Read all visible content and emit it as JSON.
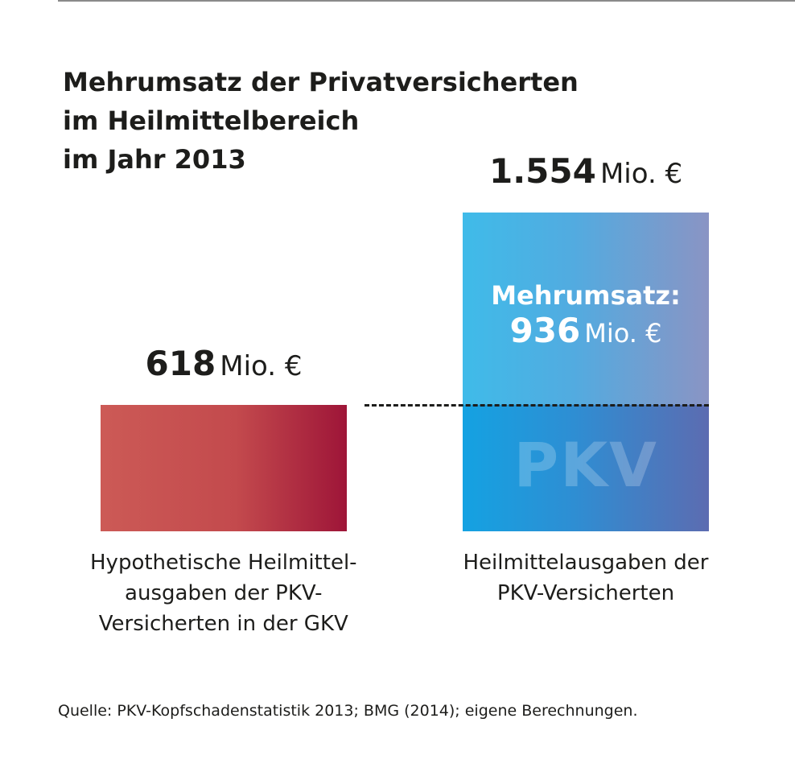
{
  "chart_data": {
    "type": "bar",
    "title_lines": [
      "Mehrumsatz der Privatversicherten",
      "im Heilmittelbereich",
      "im Jahr 2013"
    ],
    "categories": [
      [
        "Hypothetische Heilmittel-",
        "ausgaben der PKV-",
        "Versicherten in der GKV"
      ],
      [
        "Heilmittelausgaben der",
        "PKV-Versicherten"
      ]
    ],
    "values": [
      618,
      1554
    ],
    "value_labels": [
      {
        "number": "618",
        "unit": "Mio. €"
      },
      {
        "number": "1.554",
        "unit": "Mio. €"
      }
    ],
    "difference": {
      "label": "Mehrumsatz:",
      "number": "936",
      "unit": "Mio. €",
      "value": 936
    },
    "watermark": "PKV",
    "source": "Quelle: PKV-Kopfschadenstatistik 2013; BMG (2014); eigene Berechnungen.",
    "colors": {
      "gkv_bar": "#c34a4d",
      "pkv_bar": "#14a2e2",
      "pkv_excess": "#3fbbe9"
    },
    "legend": "none",
    "grid": false
  }
}
